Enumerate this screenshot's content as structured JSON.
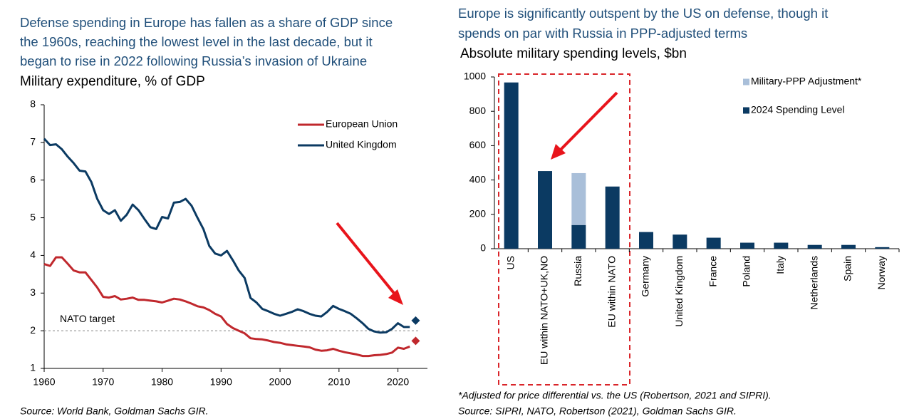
{
  "chart_data": [
    {
      "type": "line",
      "title": [
        "Defense spending in Europe has fallen as a share of GDP since",
        "the 1960s, reaching the lowest level in the last decade, but it",
        "began to rise in 2022 following Russia’s invasion of Ukraine"
      ],
      "subtitle": "Military expenditure, % of GDP",
      "source": "Source: World Bank, Goldman Sachs GIR.",
      "x": [
        1960,
        1961,
        1962,
        1963,
        1964,
        1965,
        1966,
        1967,
        1968,
        1969,
        1970,
        1971,
        1972,
        1973,
        1974,
        1975,
        1976,
        1977,
        1978,
        1979,
        1980,
        1981,
        1982,
        1983,
        1984,
        1985,
        1986,
        1987,
        1988,
        1989,
        1990,
        1991,
        1992,
        1993,
        1994,
        1995,
        1996,
        1997,
        1998,
        1999,
        2000,
        2001,
        2002,
        2003,
        2004,
        2005,
        2006,
        2007,
        2008,
        2009,
        2010,
        2011,
        2012,
        2013,
        2014,
        2015,
        2016,
        2017,
        2018,
        2019,
        2020,
        2021,
        2022,
        2023
      ],
      "series": [
        {
          "name": "European Union",
          "color": "#c0282d",
          "values": [
            3.77,
            3.72,
            3.95,
            3.95,
            3.78,
            3.6,
            3.55,
            3.55,
            3.35,
            3.15,
            2.9,
            2.88,
            2.92,
            2.83,
            2.85,
            2.88,
            2.82,
            2.82,
            2.8,
            2.78,
            2.75,
            2.8,
            2.85,
            2.83,
            2.78,
            2.72,
            2.65,
            2.62,
            2.55,
            2.45,
            2.38,
            2.18,
            2.07,
            2.0,
            1.93,
            1.8,
            1.78,
            1.77,
            1.74,
            1.7,
            1.68,
            1.64,
            1.62,
            1.6,
            1.58,
            1.56,
            1.5,
            1.47,
            1.48,
            1.52,
            1.47,
            1.43,
            1.4,
            1.37,
            1.33,
            1.33,
            1.35,
            1.36,
            1.38,
            1.42,
            1.55,
            1.52,
            1.58,
            1.73
          ]
        },
        {
          "name": "United Kingdom",
          "color": "#0b3a62",
          "values": [
            7.1,
            6.93,
            6.95,
            6.82,
            6.62,
            6.45,
            6.25,
            6.23,
            5.95,
            5.5,
            5.2,
            5.1,
            5.2,
            4.92,
            5.08,
            5.35,
            5.2,
            4.97,
            4.75,
            4.7,
            5.02,
            4.98,
            5.4,
            5.42,
            5.5,
            5.32,
            5.0,
            4.7,
            4.25,
            4.05,
            4.0,
            4.12,
            3.87,
            3.6,
            3.4,
            2.87,
            2.75,
            2.58,
            2.52,
            2.45,
            2.4,
            2.45,
            2.5,
            2.57,
            2.52,
            2.45,
            2.4,
            2.38,
            2.5,
            2.66,
            2.58,
            2.52,
            2.45,
            2.33,
            2.2,
            2.05,
            1.98,
            1.95,
            1.96,
            2.05,
            2.2,
            2.1,
            2.1,
            2.27
          ]
        }
      ],
      "last_point_marker": "diamond",
      "reference_line": {
        "label": "NATO target",
        "value": 2
      },
      "xlim": [
        1960,
        2025
      ],
      "xticks": [
        1960,
        1970,
        1980,
        1990,
        2000,
        2010,
        2020
      ],
      "ylim": [
        1,
        8
      ],
      "yticks": [
        1,
        2,
        3,
        4,
        5,
        6,
        7,
        8
      ],
      "legend": "top-right",
      "grid": false
    },
    {
      "type": "stacked-bar",
      "title": [
        "Europe is significantly outspent by the US on defense, though it",
        "spends on par with Russia in PPP-adjusted terms"
      ],
      "subtitle": "Absolute military spending levels, $bn",
      "footnote": "*Adjusted for price differential vs. the US (Robertson, 2021 and SIPRI).",
      "source": "Source: SIPRI, NATO, Robertson (2021), Goldman Sachs GIR.",
      "categories": [
        "US",
        "EU within NATO+UK,NO",
        "Russia",
        "EU within NATO",
        "Germany",
        "United Kingdom",
        "France",
        "Poland",
        "Italy",
        "Netherlands",
        "Spain",
        "Norway"
      ],
      "series": [
        {
          "name": "Military-PPP Adjustment*",
          "color": "#a9bfd9",
          "values": [
            null,
            null,
            302,
            null,
            null,
            null,
            null,
            null,
            null,
            null,
            null,
            null
          ]
        },
        {
          "name": "2024 Spending Level",
          "color": "#0b3a62",
          "values": [
            968,
            452,
            138,
            362,
            97,
            82,
            64,
            35,
            35,
            22,
            22,
            9
          ]
        }
      ],
      "ylim": [
        0,
        1000
      ],
      "yticks": [
        0,
        200,
        400,
        600,
        800,
        1000
      ],
      "legend": "top-right",
      "grid": false
    }
  ]
}
